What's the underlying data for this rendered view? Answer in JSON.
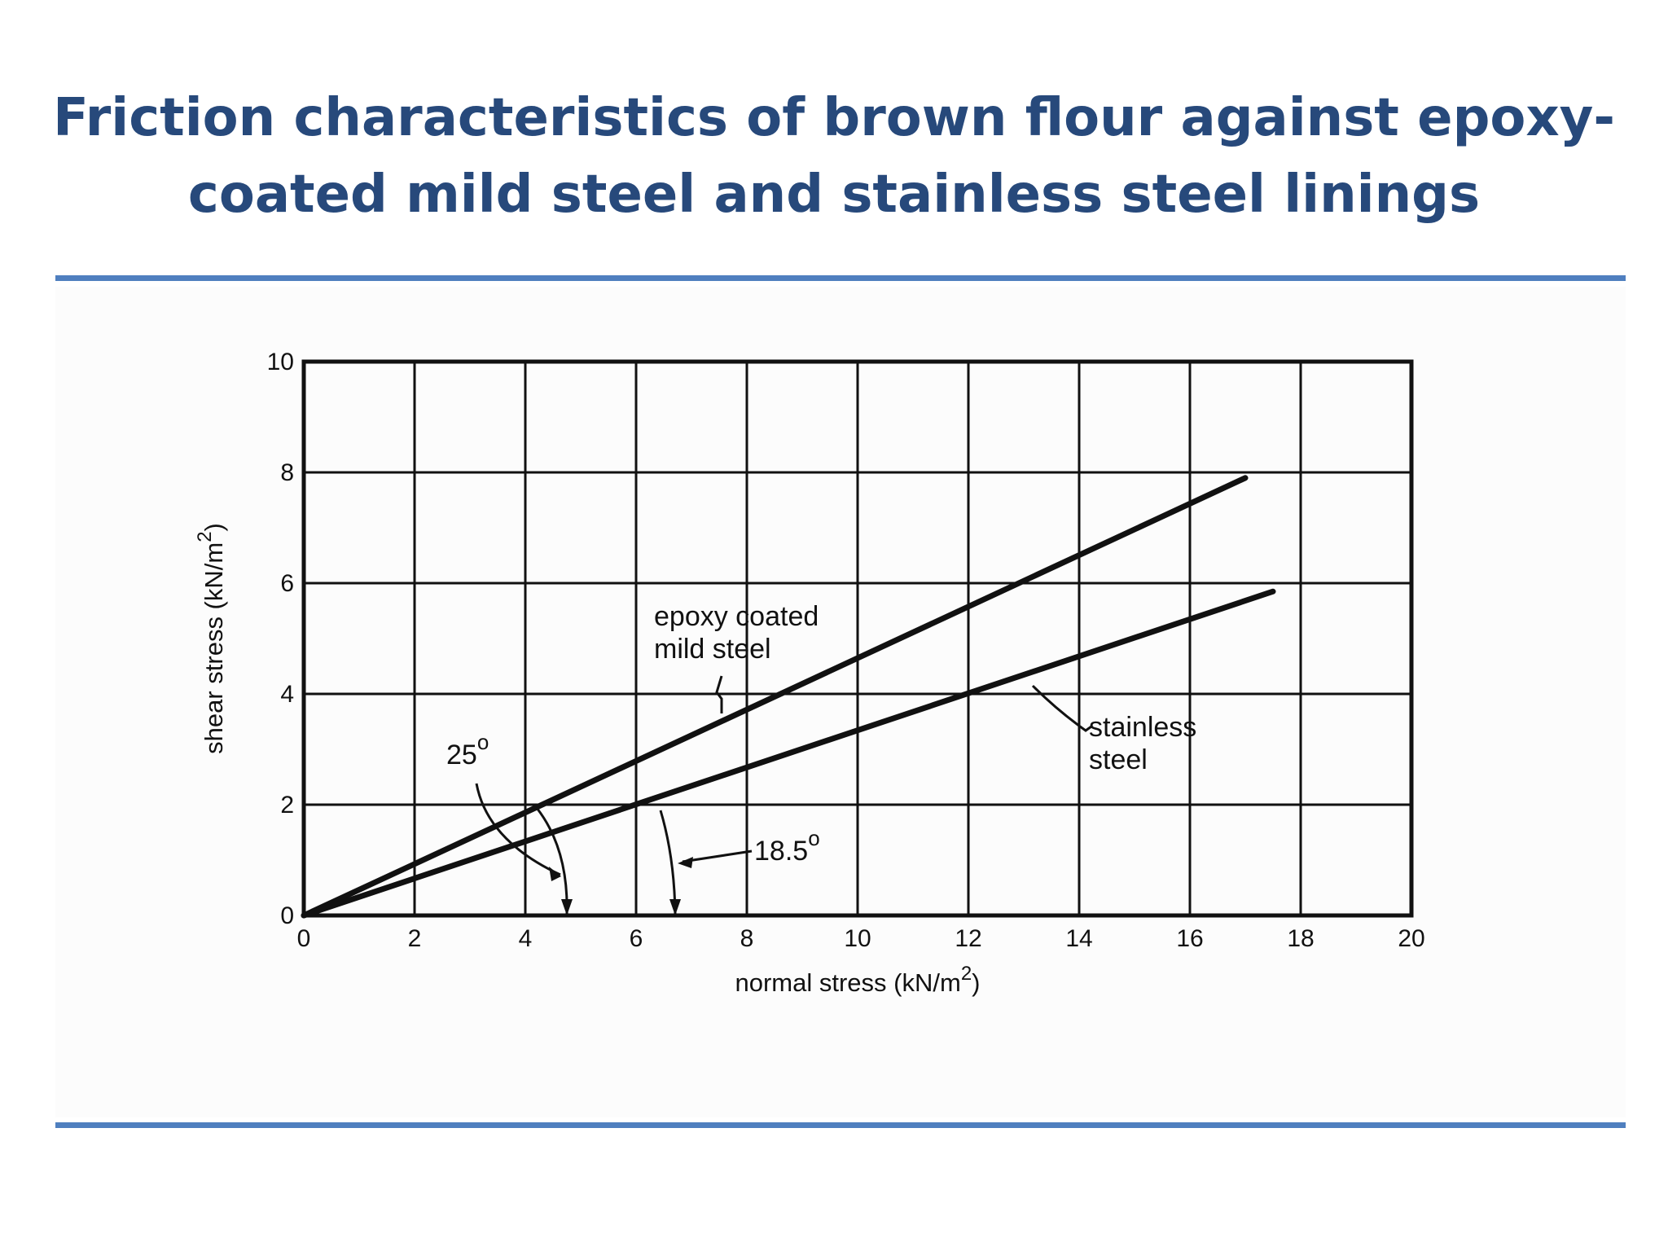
{
  "slide": {
    "title_line1": "Friction characteristics of brown flour against epoxy-",
    "title_line2": "coated mild steel and stainless steel linings"
  },
  "colors": {
    "title": "#27497b",
    "rule": "#4f7fbf",
    "ink": "#111111"
  },
  "chart_data": {
    "type": "line",
    "title": "",
    "xlabel": "normal stress (kN/m",
    "xlabel_sup": "2",
    "xlabel_close": ")",
    "ylabel": "shear stress (kN/m",
    "ylabel_sup": "2",
    "ylabel_close": ")",
    "xlim": [
      0,
      20
    ],
    "ylim": [
      0,
      10
    ],
    "x_ticks": [
      0,
      2,
      4,
      6,
      8,
      10,
      12,
      14,
      16,
      18,
      20
    ],
    "y_ticks": [
      0,
      2,
      4,
      6,
      8,
      10
    ],
    "grid": true,
    "legend": "none (direct labels)",
    "series": [
      {
        "name": "epoxy coated mild steel",
        "label_lines": [
          "epoxy coated",
          "mild steel"
        ],
        "points": [
          [
            0,
            0
          ],
          [
            17,
            7.9
          ]
        ]
      },
      {
        "name": "stainless steel",
        "label_lines": [
          "stainless",
          "steel"
        ],
        "points": [
          [
            0,
            0
          ],
          [
            17.5,
            5.85
          ]
        ]
      }
    ],
    "annotations": [
      {
        "text": "25",
        "superscript": "o",
        "meaning": "angle of wall friction, epoxy coated mild steel"
      },
      {
        "text": "18.5",
        "superscript": "o",
        "meaning": "angle of wall friction, stainless steel"
      }
    ]
  }
}
